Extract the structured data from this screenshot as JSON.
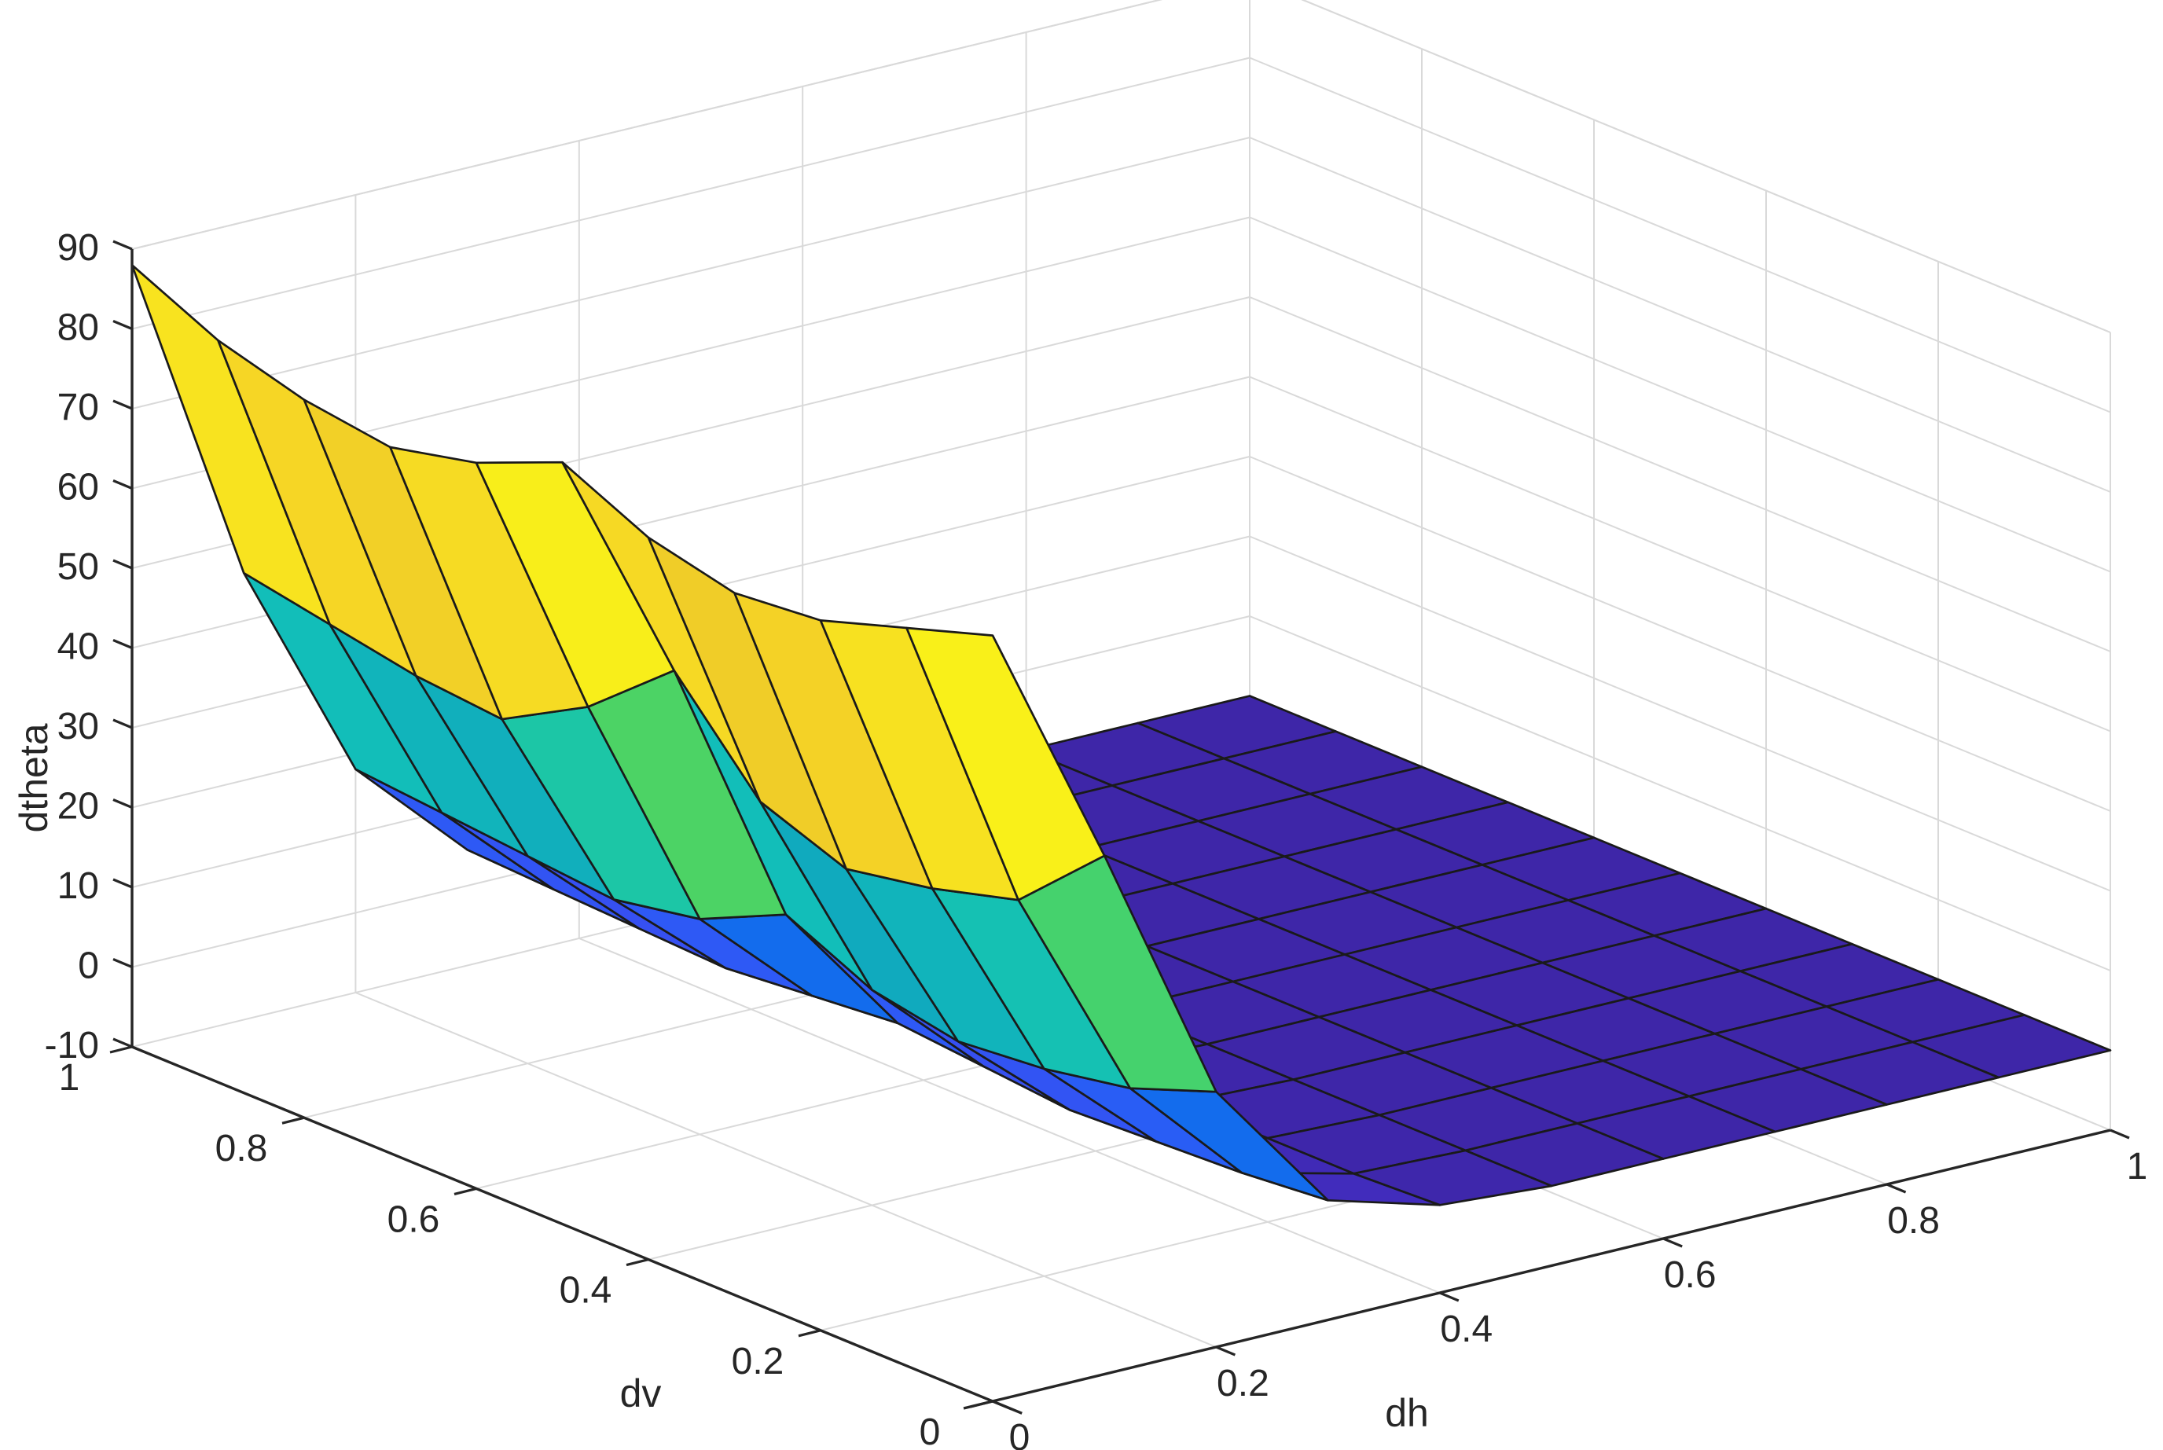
{
  "figure": {
    "background": "#ffffff",
    "text_color": "#262626",
    "axis_color": "#262626",
    "grid_color": "#d9d9d9",
    "surface_edge_color": "#1a1a1a"
  },
  "chart_data": {
    "type": "surface",
    "title": "",
    "xlabel": "dh",
    "ylabel": "dv",
    "zlabel": "dtheta",
    "xlim": [
      0,
      1
    ],
    "ylim": [
      0,
      1
    ],
    "zlim": [
      -10,
      90
    ],
    "xticks": [
      "0",
      "0.2",
      "0.4",
      "0.6",
      "0.8",
      "1"
    ],
    "yticks": [
      "0",
      "0.2",
      "0.4",
      "0.6",
      "0.8",
      "1"
    ],
    "zticks": [
      "-10",
      "0",
      "10",
      "20",
      "30",
      "40",
      "50",
      "60",
      "70",
      "80",
      "90"
    ],
    "colormap": "parula",
    "clim": [
      0,
      88
    ],
    "grid": true,
    "x": [
      0,
      0.1,
      0.2,
      0.3,
      0.4,
      0.5,
      0.6,
      0.7,
      0.8,
      0.9,
      1.0
    ],
    "y": [
      0,
      0.1,
      0.2,
      0.3,
      0.4,
      0.5,
      0.6,
      0.7,
      0.8,
      0.9,
      1.0
    ],
    "z": [
      [
        86.0,
        55.0,
        22.0,
        5.0,
        1.0,
        0,
        0,
        0,
        0,
        0,
        0
      ],
      [
        82.5,
        45.0,
        18.0,
        4.0,
        0.5,
        0,
        0,
        0,
        0,
        0,
        0
      ],
      [
        79.0,
        42.0,
        16.0,
        3.5,
        0.5,
        0,
        0,
        0,
        0,
        0,
        0
      ],
      [
        78.0,
        40.0,
        15.0,
        3.0,
        0.5,
        0,
        0,
        0,
        0,
        0,
        0
      ],
      [
        80.5,
        44.0,
        17.0,
        4.0,
        0.5,
        0,
        0,
        0,
        0,
        0,
        0
      ],
      [
        85.5,
        56.0,
        22.0,
        5.0,
        1.0,
        0,
        0,
        0,
        0,
        0,
        0
      ],
      [
        81.0,
        47.0,
        17.0,
        4.0,
        0.5,
        0,
        0,
        0,
        0,
        0,
        0
      ],
      [
        78.5,
        41.0,
        15.0,
        3.0,
        0.5,
        0,
        0,
        0,
        0,
        0,
        0
      ],
      [
        80.0,
        42.0,
        16.0,
        3.5,
        0.5,
        0,
        0,
        0,
        0,
        0,
        0
      ],
      [
        83.0,
        44.0,
        17.0,
        4.0,
        0.5,
        0,
        0,
        0,
        0,
        0,
        0
      ],
      [
        88.0,
        46.0,
        18.0,
        4.5,
        0.5,
        0,
        0,
        0,
        0,
        0,
        0
      ]
    ]
  }
}
